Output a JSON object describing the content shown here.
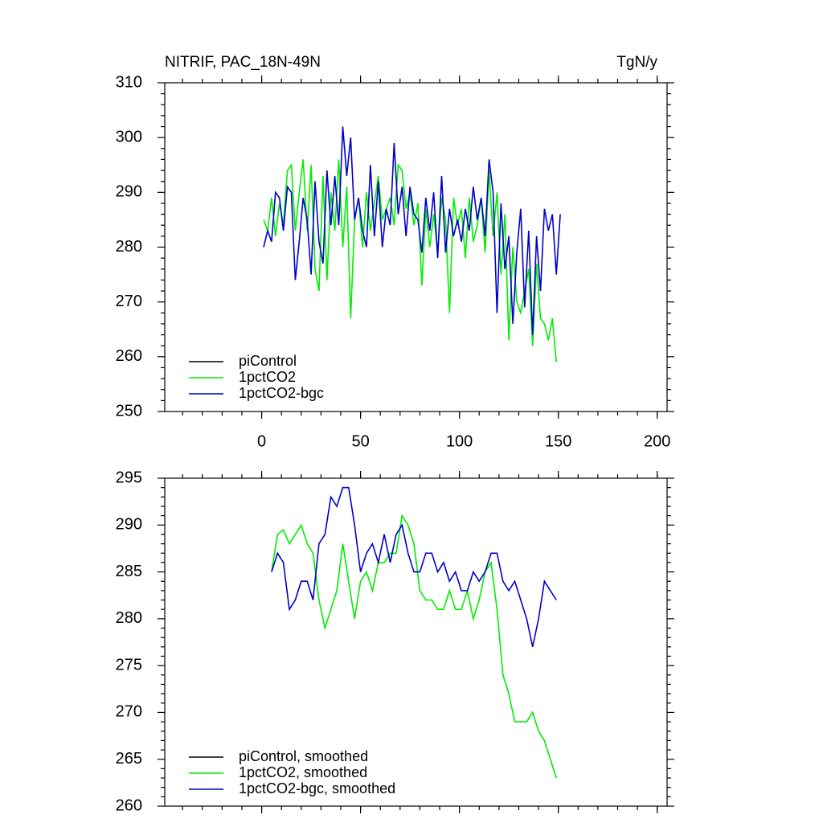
{
  "chart_data": [
    {
      "type": "line",
      "title": "NITRIF, PAC_18N-49N",
      "y_label": "TgN/y",
      "xlim": [
        -49,
        205
      ],
      "xticks": [
        0,
        50,
        100,
        150,
        200
      ],
      "ylim": [
        250,
        310
      ],
      "yticks": [
        250,
        260,
        270,
        280,
        290,
        300,
        310
      ],
      "legend": "lower left",
      "series": [
        {
          "name": "piControl",
          "color": "#000000",
          "x": [],
          "values": []
        },
        {
          "name": "1pctCO2",
          "color": "#00ee00",
          "x": [
            1,
            3,
            5,
            7,
            9,
            11,
            13,
            15,
            17,
            19,
            21,
            23,
            25,
            27,
            29,
            31,
            33,
            35,
            37,
            39,
            41,
            43,
            45,
            47,
            49,
            51,
            53,
            55,
            57,
            59,
            61,
            63,
            65,
            67,
            69,
            71,
            73,
            75,
            77,
            79,
            81,
            83,
            85,
            87,
            89,
            91,
            93,
            95,
            97,
            99,
            101,
            103,
            105,
            107,
            109,
            111,
            113,
            115,
            117,
            119,
            121,
            123,
            125,
            127,
            129,
            131,
            133,
            135,
            137,
            139,
            141,
            143,
            145,
            147,
            149
          ],
          "values": [
            285,
            283,
            289,
            282,
            288,
            284,
            294,
            295,
            283,
            290,
            296,
            283,
            295,
            276,
            272,
            293,
            274,
            290,
            283,
            296,
            280,
            291,
            267,
            285,
            289,
            280,
            290,
            283,
            288,
            293,
            285,
            287,
            289,
            284,
            295,
            294,
            287,
            290,
            284,
            288,
            273,
            287,
            280,
            286,
            279,
            289,
            285,
            268,
            289,
            284,
            287,
            278,
            289,
            281,
            284,
            289,
            279,
            294,
            282,
            290,
            275,
            286,
            263,
            280,
            270,
            268,
            272,
            276,
            262,
            277,
            267,
            266,
            263,
            267,
            259
          ]
        },
        {
          "name": "1pctCO2-bgc",
          "color": "#0000cc",
          "x": [
            1,
            3,
            5,
            7,
            9,
            11,
            13,
            15,
            17,
            19,
            21,
            23,
            25,
            27,
            29,
            31,
            33,
            35,
            37,
            39,
            41,
            43,
            45,
            47,
            49,
            51,
            53,
            55,
            57,
            59,
            61,
            63,
            65,
            67,
            69,
            71,
            73,
            75,
            77,
            79,
            81,
            83,
            85,
            87,
            89,
            91,
            93,
            95,
            97,
            99,
            101,
            103,
            105,
            107,
            109,
            111,
            113,
            115,
            117,
            119,
            121,
            123,
            125,
            127,
            129,
            131,
            133,
            135,
            137,
            139,
            141,
            143,
            145,
            147,
            149,
            151
          ],
          "values": [
            280,
            283,
            281,
            290,
            289,
            283,
            291,
            290,
            274,
            281,
            289,
            285,
            275,
            292,
            281,
            277,
            294,
            284,
            293,
            284,
            302,
            293,
            300,
            285,
            289,
            283,
            280,
            295,
            282,
            292,
            280,
            287,
            284,
            299,
            286,
            291,
            282,
            291,
            286,
            285,
            279,
            289,
            283,
            290,
            278,
            293,
            279,
            287,
            282,
            285,
            281,
            287,
            283,
            291,
            285,
            289,
            282,
            296,
            290,
            268,
            288,
            276,
            282,
            266,
            279,
            287,
            269,
            283,
            264,
            282,
            272,
            287,
            283,
            286,
            275,
            286
          ]
        }
      ]
    },
    {
      "type": "line",
      "xlim": [
        -49,
        205
      ],
      "ylim": [
        260,
        295
      ],
      "yticks": [
        260,
        265,
        270,
        275,
        280,
        285,
        290,
        295
      ],
      "legend": "lower left",
      "series": [
        {
          "name": "piControl, smoothed",
          "color": "#000000",
          "x": [],
          "values": []
        },
        {
          "name": "1pctCO2, smoothed",
          "color": "#00ee00",
          "x": [
            5,
            8,
            11,
            14,
            17,
            20,
            23,
            26,
            29,
            32,
            35,
            38,
            41,
            44,
            47,
            50,
            53,
            56,
            59,
            62,
            65,
            68,
            71,
            74,
            77,
            80,
            83,
            86,
            89,
            92,
            95,
            98,
            101,
            104,
            107,
            110,
            113,
            116,
            119,
            122,
            125,
            128,
            131,
            134,
            137,
            140,
            143,
            146,
            149
          ],
          "values": [
            285,
            289,
            289.5,
            288,
            289,
            290,
            288,
            287,
            282,
            279,
            281,
            283,
            288,
            284,
            280,
            284,
            285,
            283,
            286,
            286,
            287,
            287,
            291,
            290,
            288,
            283,
            282,
            282,
            281,
            281,
            283,
            281,
            281,
            283,
            280,
            282,
            285,
            286,
            281,
            274,
            272,
            269,
            269,
            269,
            270,
            268,
            267,
            265,
            263
          ]
        },
        {
          "name": "1pctCO2-bgc, smoothed",
          "color": "#0000cc",
          "x": [
            5,
            8,
            11,
            14,
            17,
            20,
            23,
            26,
            29,
            32,
            35,
            38,
            41,
            44,
            47,
            50,
            53,
            56,
            59,
            62,
            65,
            68,
            71,
            74,
            77,
            80,
            83,
            86,
            89,
            92,
            95,
            98,
            101,
            104,
            107,
            110,
            113,
            116,
            119,
            122,
            125,
            128,
            131,
            134,
            137,
            140,
            143,
            146,
            149
          ],
          "values": [
            285,
            287,
            286,
            281,
            282,
            284,
            284,
            282,
            288,
            289,
            293,
            292,
            294,
            294,
            290,
            285,
            287,
            288,
            286,
            289,
            286,
            289,
            290,
            287,
            285,
            285,
            287,
            287,
            285,
            286,
            284,
            285,
            283,
            283,
            285,
            284,
            285,
            287,
            287,
            284,
            283,
            284,
            282,
            280,
            277,
            280,
            284,
            283,
            282
          ]
        }
      ]
    }
  ]
}
